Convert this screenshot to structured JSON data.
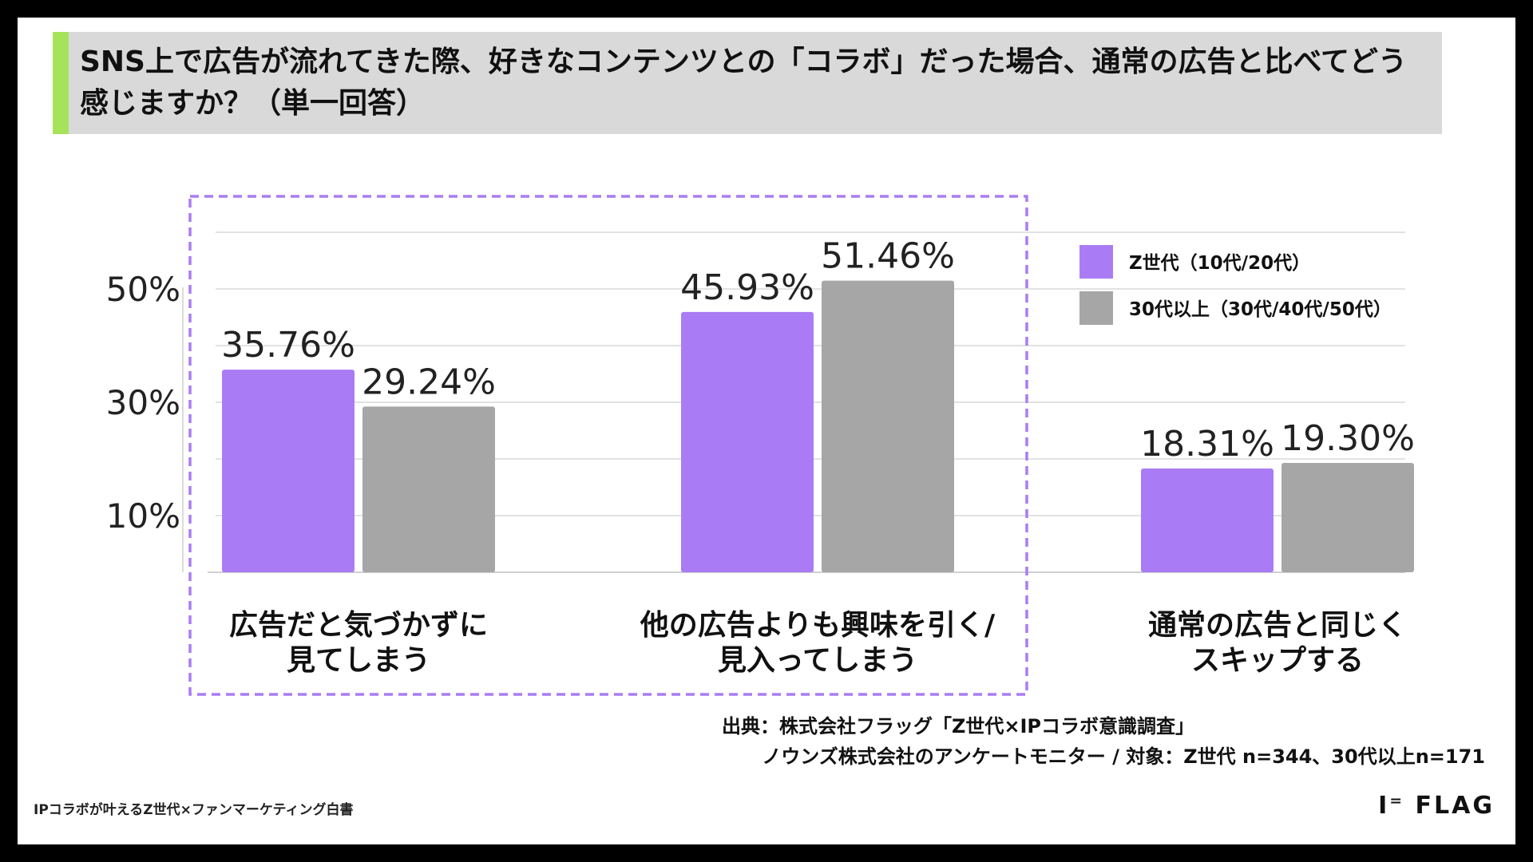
{
  "title": "SNS上で広告が流れてきた際、好きなコンテンツとの「コラボ」だった場合、通常の広告と比べてどう感じますか？（単一回答）",
  "colors": {
    "accent": "#a5e35a",
    "series1": "#a97cf5",
    "series2": "#a6a6a6",
    "highlight_border": "#a97cf5",
    "grid": "#d9d9d9"
  },
  "chart_data": {
    "type": "bar",
    "categories": [
      [
        "広告だと気づかずに",
        "見てしまう"
      ],
      [
        "他の広告よりも興味を引く/",
        "見入ってしまう"
      ],
      [
        "通常の広告と同じく",
        "スキップする"
      ]
    ],
    "series": [
      {
        "name": "Z世代（10代/20代）",
        "values": [
          35.76,
          45.93,
          18.31
        ],
        "labels": [
          "35.76%",
          "45.93%",
          "18.31%"
        ]
      },
      {
        "name": "30代以上（30代/40代/50代）",
        "values": [
          29.24,
          51.46,
          19.3
        ],
        "labels": [
          "29.24%",
          "51.46%",
          "19.30%"
        ]
      }
    ],
    "y_ticks": [
      "50%",
      "30%",
      "10%"
    ],
    "y_tick_values": [
      50,
      30,
      10
    ],
    "ylim": [
      0,
      60
    ],
    "grid": true,
    "legend_position": "top-right",
    "highlighted_categories": [
      0,
      1
    ]
  },
  "source": {
    "line1": "出典：株式会社フラッグ「Z世代×IPコラボ意識調査」",
    "line2": "ノウンズ株式会社のアンケートモニター / 対象：Z世代 n=344、30代以上n=171"
  },
  "footer": {
    "left": "IPコラボが叶えるZ世代×ファンマーケティング白書",
    "logo": "I⁼ FLAG"
  }
}
